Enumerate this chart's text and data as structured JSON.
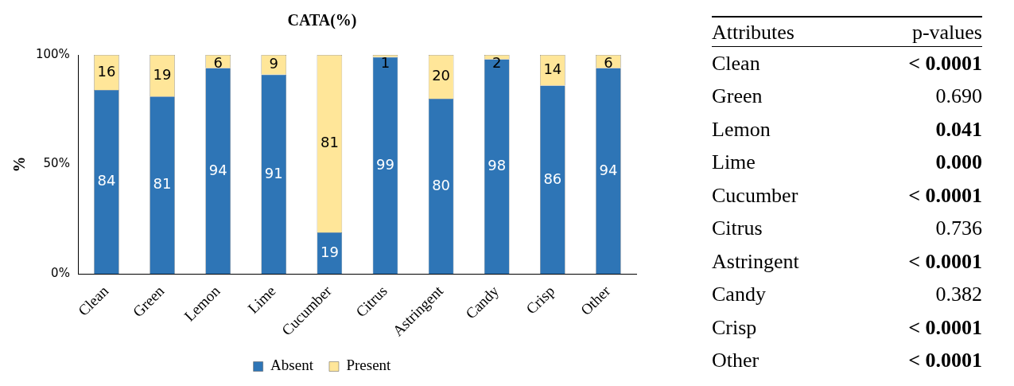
{
  "chart_data": [
    {
      "type": "bar",
      "title": "CATA(%)",
      "ylabel": "%",
      "stacked": true,
      "data_labels": true,
      "legend": "bottom",
      "grid": false,
      "categories": [
        "Clean",
        "Green",
        "Lemon",
        "Lime",
        "Cucumber",
        "Citrus",
        "Astringent",
        "Candy",
        "Crisp",
        "Other"
      ],
      "series": [
        {
          "name": "Absent",
          "color": "#2e75b6",
          "values": [
            84,
            81,
            94,
            91,
            19,
            99,
            80,
            98,
            86,
            94
          ]
        },
        {
          "name": "Present",
          "color": "#ffe699",
          "values": [
            16,
            19,
            6,
            9,
            81,
            1,
            20,
            2,
            14,
            6
          ]
        }
      ],
      "ylim": [
        0,
        100
      ],
      "yticks": [
        {
          "value": 0,
          "label": "0%"
        },
        {
          "value": 50,
          "label": "50%"
        },
        {
          "value": 100,
          "label": "100%"
        }
      ]
    },
    {
      "type": "other",
      "annotations": [
        "Attributes",
        "p-values"
      ],
      "categories": [
        "Clean",
        "Green",
        "Lemon",
        "Lime",
        "Cucumber",
        "Citrus",
        "Astringent",
        "Candy",
        "Crisp",
        "Other"
      ],
      "value_labels": [
        "< 0.0001",
        "0.690",
        "0.041",
        "0.000",
        "< 0.0001",
        "0.736",
        "< 0.0001",
        "0.382",
        "< 0.0001",
        "< 0.0001"
      ]
    }
  ]
}
